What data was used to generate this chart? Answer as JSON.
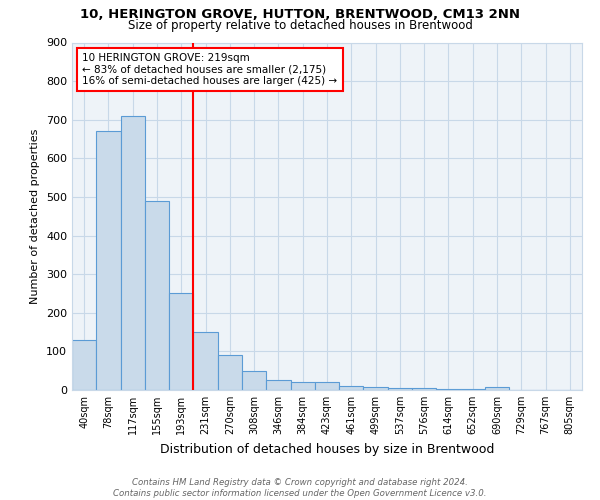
{
  "title1": "10, HERINGTON GROVE, HUTTON, BRENTWOOD, CM13 2NN",
  "title2": "Size of property relative to detached houses in Brentwood",
  "xlabel": "Distribution of detached houses by size in Brentwood",
  "ylabel": "Number of detached properties",
  "categories": [
    "40sqm",
    "78sqm",
    "117sqm",
    "155sqm",
    "193sqm",
    "231sqm",
    "270sqm",
    "308sqm",
    "346sqm",
    "384sqm",
    "423sqm",
    "461sqm",
    "499sqm",
    "537sqm",
    "576sqm",
    "614sqm",
    "652sqm",
    "690sqm",
    "729sqm",
    "767sqm",
    "805sqm"
  ],
  "values": [
    130,
    670,
    710,
    490,
    250,
    150,
    90,
    50,
    25,
    20,
    20,
    10,
    8,
    5,
    5,
    3,
    3,
    8,
    0,
    0,
    0
  ],
  "bar_color": "#c9daea",
  "bar_edge_color": "#5b9bd5",
  "bar_linewidth": 0.8,
  "grid_color": "#c8d8e8",
  "reference_line_color": "red",
  "annotation_text": "10 HERINGTON GROVE: 219sqm\n← 83% of detached houses are smaller (2,175)\n16% of semi-detached houses are larger (425) →",
  "annotation_box_color": "white",
  "annotation_box_edge_color": "red",
  "ylim": [
    0,
    900
  ],
  "yticks": [
    0,
    100,
    200,
    300,
    400,
    500,
    600,
    700,
    800,
    900
  ],
  "footnote": "Contains HM Land Registry data © Crown copyright and database right 2024.\nContains public sector information licensed under the Open Government Licence v3.0.",
  "background_color": "#eef3f8",
  "fig_width": 6.0,
  "fig_height": 5.0,
  "dpi": 100
}
